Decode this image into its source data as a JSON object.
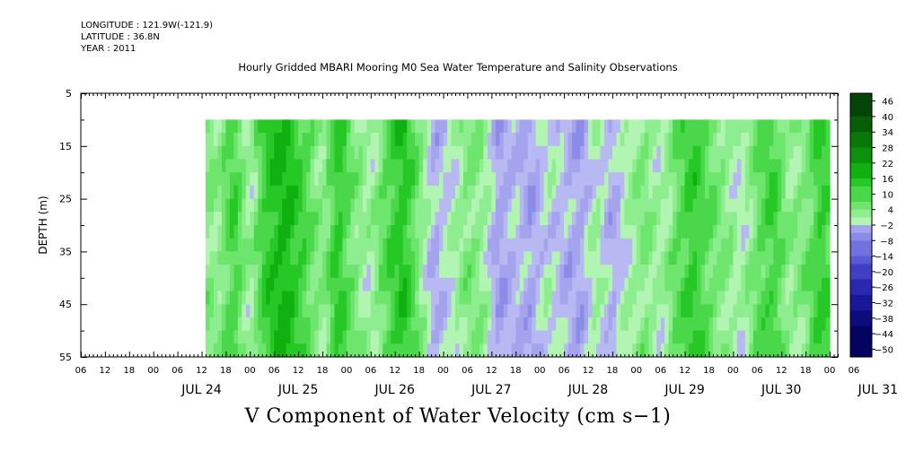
{
  "header": {
    "longitude": "LONGITUDE : 121.9W(-121.9)",
    "latitude": "LATITUDE : 36.8N",
    "year": "YEAR : 2011"
  },
  "chart_data": {
    "type": "heatmap",
    "title": "Hourly Gridded MBARI Mooring M0 Sea Water Temperature and Salinity Observations",
    "caption": "V Component of Water Velocity (cm s−1)",
    "ylabel": "DEPTH (m)",
    "ylim": [
      5,
      55
    ],
    "y_reversed": true,
    "y_ticks": [
      5,
      15,
      25,
      35,
      45,
      55
    ],
    "hour_tick_labels": [
      "06",
      "12",
      "18",
      "00",
      "06",
      "12",
      "18",
      "00",
      "06",
      "12",
      "18",
      "00",
      "06",
      "12",
      "18",
      "00",
      "06",
      "12",
      "18",
      "00",
      "06",
      "12",
      "18",
      "00",
      "06",
      "12",
      "18",
      "00",
      "06",
      "12",
      "18",
      "00",
      "06"
    ],
    "day_labels": [
      "JUL 24",
      "JUL 25",
      "JUL 26",
      "JUL 27",
      "JUL 28",
      "JUL 29",
      "JUL 30",
      "JUL 31"
    ],
    "x_range_hours_from_jul24_00": [
      -18,
      170
    ],
    "data_start_hour": 13,
    "data_end_hour": 168,
    "data_depth_top": 10,
    "data_depth_bottom": 55,
    "colorbar": {
      "labels": [
        "46",
        "40",
        "34",
        "28",
        "22",
        "16",
        "10",
        "4",
        "−2",
        "−8",
        "−14",
        "−20",
        "−26",
        "−32",
        "−38",
        "−44",
        "−50"
      ],
      "min": -50,
      "max": 50,
      "step": 3
    },
    "v_profile_by_hour": [
      {
        "hour": 13,
        "v": 6
      },
      {
        "hour": 16,
        "v": 4
      },
      {
        "hour": 20,
        "v": 12
      },
      {
        "hour": 24,
        "v": 2
      },
      {
        "hour": 28,
        "v": 14
      },
      {
        "hour": 33,
        "v": 18
      },
      {
        "hour": 38,
        "v": 10
      },
      {
        "hour": 42,
        "v": 4
      },
      {
        "hour": 46,
        "v": 14
      },
      {
        "hour": 50,
        "v": 6
      },
      {
        "hour": 54,
        "v": 2
      },
      {
        "hour": 58,
        "v": 10
      },
      {
        "hour": 62,
        "v": 16
      },
      {
        "hour": 66,
        "v": 6
      },
      {
        "hour": 70,
        "v": -3
      },
      {
        "hour": 74,
        "v": 1
      },
      {
        "hour": 78,
        "v": 6
      },
      {
        "hour": 82,
        "v": 4
      },
      {
        "hour": 86,
        "v": -5
      },
      {
        "hour": 90,
        "v": -1
      },
      {
        "hour": 94,
        "v": -4
      },
      {
        "hour": 98,
        "v": 1
      },
      {
        "hour": 102,
        "v": -2
      },
      {
        "hour": 106,
        "v": -4
      },
      {
        "hour": 110,
        "v": 3
      },
      {
        "hour": 114,
        "v": -3
      },
      {
        "hour": 118,
        "v": 2
      },
      {
        "hour": 122,
        "v": 6
      },
      {
        "hour": 126,
        "v": 2
      },
      {
        "hour": 130,
        "v": 8
      },
      {
        "hour": 134,
        "v": 14
      },
      {
        "hour": 138,
        "v": 8
      },
      {
        "hour": 142,
        "v": 5
      },
      {
        "hour": 146,
        "v": 1
      },
      {
        "hour": 150,
        "v": 8
      },
      {
        "hour": 154,
        "v": 12
      },
      {
        "hour": 158,
        "v": 4
      },
      {
        "hour": 162,
        "v": 6
      },
      {
        "hour": 166,
        "v": 14
      },
      {
        "hour": 168,
        "v": 10
      }
    ]
  }
}
